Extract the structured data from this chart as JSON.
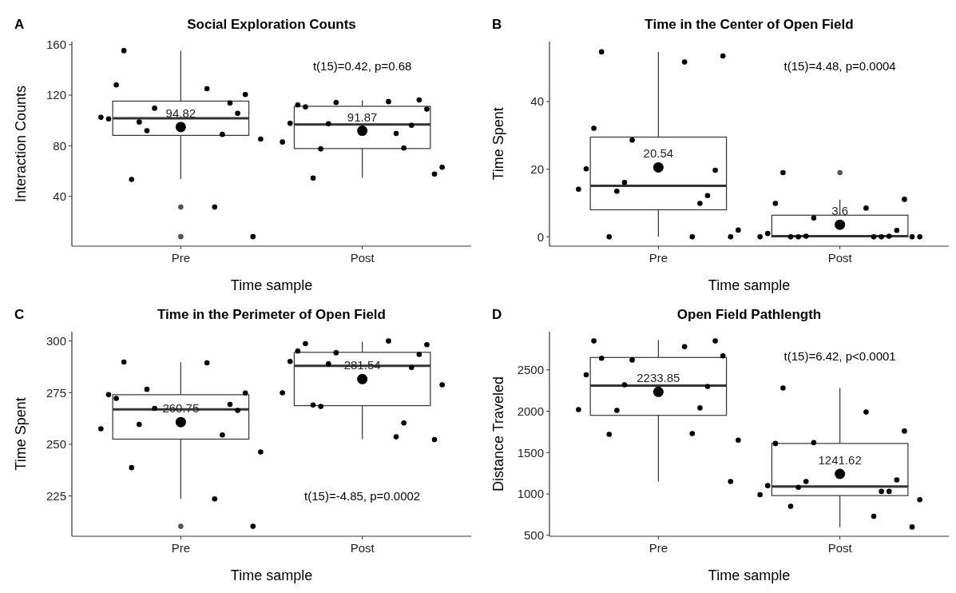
{
  "chart_data": [
    {
      "type": "box",
      "title": "Social Exploration Counts",
      "xlabel": "Time sample",
      "ylabel": "Interaction Counts",
      "categories": [
        "Pre",
        "Post"
      ],
      "ylim": [
        0.6,
        162.4
      ],
      "yticks": [
        40,
        80,
        120,
        160
      ],
      "boxes": [
        {
          "low": 53.7,
          "q1": 88.2,
          "median": 101.8,
          "q3": 115.3,
          "high": 155.2,
          "mean": 94.82,
          "outliers": [
            31.5,
            8.1
          ]
        },
        {
          "low": 54.7,
          "q1": 77.8,
          "median": 96.8,
          "q3": 111.2,
          "high": 115.9,
          "mean": 91.87
        }
      ],
      "series": [
        {
          "type": "scatter",
          "color": "#000000",
          "x": [
            "Pre",
            "Pre",
            "Pre",
            "Pre",
            "Pre",
            "Pre",
            "Pre",
            "Pre",
            "Pre",
            "Pre",
            "Pre",
            "Pre",
            "Pre",
            "Pre",
            "Pre",
            "Pre",
            "Post",
            "Post",
            "Post",
            "Post",
            "Post",
            "Post",
            "Post",
            "Post",
            "Post",
            "Post",
            "Post",
            "Post",
            "Post",
            "Post",
            "Post",
            "Post"
          ],
          "values": [
            155.2,
            125.1,
            120.5,
            128.1,
            109.7,
            105.7,
            101.2,
            91.9,
            113.8,
            102.5,
            98.8,
            89.0,
            85.3,
            53.4,
            31.5,
            8.1,
            110.7,
            114.9,
            109.0,
            112.3,
            114.2,
            116.2,
            97.7,
            97.5,
            96.2,
            83.0,
            77.5,
            78.2,
            63.0,
            54.5,
            89.7,
            57.6
          ]
        }
      ],
      "annotations": [
        "A",
        "t(15)=0.42, p=0.68",
        "94.82",
        "91.87"
      ]
    },
    {
      "type": "box",
      "title": "Time in the Center of Open Field",
      "xlabel": "Time sample",
      "ylabel": "Time Spent",
      "categories": [
        "Pre",
        "Post"
      ],
      "ylim": [
        -2.75,
        57.75
      ],
      "yticks": [
        0,
        20,
        40
      ],
      "boxes": [
        {
          "low": 0,
          "q1": 8.0,
          "median": 15.1,
          "q3": 29.5,
          "high": 54.7,
          "mean": 20.54
        },
        {
          "low": 0,
          "q1": 0,
          "median": 0.2,
          "q3": 6.4,
          "high": 11.0,
          "mean": 3.6,
          "outliers": [
            19.0
          ]
        }
      ],
      "series": [
        {
          "type": "scatter",
          "color": "#000000",
          "x": [
            "Pre",
            "Pre",
            "Pre",
            "Pre",
            "Pre",
            "Pre",
            "Pre",
            "Pre",
            "Pre",
            "Pre",
            "Pre",
            "Pre",
            "Pre",
            "Pre",
            "Pre",
            "Pre",
            "Post",
            "Post",
            "Post",
            "Post",
            "Post",
            "Post",
            "Post",
            "Post",
            "Post",
            "Post",
            "Post",
            "Post",
            "Post",
            "Post",
            "Post",
            "Post"
          ],
          "values": [
            54.7,
            51.7,
            53.5,
            32.1,
            28.6,
            19.7,
            20.1,
            16.1,
            12.2,
            14.1,
            13.5,
            9.9,
            2.0,
            0,
            0,
            0,
            19.0,
            8.5,
            11.1,
            9.9,
            5.6,
            1.9,
            1.0,
            0.2,
            0.2,
            0,
            0,
            0,
            0,
            0,
            0,
            0
          ]
        }
      ],
      "annotations": [
        "B",
        "t(15)=4.48, p=0.0004",
        "20.54",
        "3.6"
      ]
    },
    {
      "type": "box",
      "title": "Time in the Perimeter of Open Field",
      "xlabel": "Time sample",
      "ylabel": "Time Spent",
      "categories": [
        "Pre",
        "Post"
      ],
      "ylim": [
        205.5,
        304.5
      ],
      "yticks": [
        225,
        250,
        275,
        300
      ],
      "boxes": [
        {
          "low": 223.6,
          "q1": 252.5,
          "median": 266.9,
          "q3": 274.0,
          "high": 289.7,
          "mean": 260.75,
          "outliers": [
            210.3
          ]
        },
        {
          "low": 252.5,
          "q1": 268.7,
          "median": 288.0,
          "q3": 294.5,
          "high": 299.7,
          "mean": 281.54
        }
      ],
      "series": [
        {
          "type": "scatter",
          "color": "#000000",
          "x": [
            "Pre",
            "Pre",
            "Pre",
            "Pre",
            "Pre",
            "Pre",
            "Pre",
            "Pre",
            "Pre",
            "Pre",
            "Pre",
            "Pre",
            "Pre",
            "Pre",
            "Pre",
            "Pre",
            "Post",
            "Post",
            "Post",
            "Post",
            "Post",
            "Post",
            "Post",
            "Post",
            "Post",
            "Post",
            "Post",
            "Post",
            "Post",
            "Post",
            "Post",
            "Post"
          ],
          "values": [
            289.8,
            289.4,
            274.8,
            272.2,
            267.4,
            266.4,
            274.0,
            276.6,
            269.3,
            257.5,
            259.6,
            254.5,
            246.3,
            238.7,
            223.6,
            210.3,
            298.7,
            300,
            298.2,
            295.1,
            294.3,
            293.5,
            290.1,
            288.9,
            287.2,
            274.9,
            268.3,
            260.3,
            278.8,
            269.0,
            253.6,
            252.3
          ]
        }
      ],
      "annotations": [
        "C",
        "t(15)=-4.85, p=0.0002",
        "260.75",
        "281.54"
      ]
    },
    {
      "type": "box",
      "title": "Open Field Pathlength",
      "xlabel": "Time sample",
      "ylabel": "Distance Traveled",
      "categories": [
        "Pre",
        "Post"
      ],
      "ylim": [
        488,
        2962
      ],
      "yticks": [
        500,
        1000,
        1500,
        2000,
        2500
      ],
      "boxes": [
        {
          "low": 1150,
          "q1": 1950,
          "median": 2310,
          "q3": 2650,
          "high": 2860,
          "mean": 2233.85
        },
        {
          "low": 600,
          "q1": 980,
          "median": 1090,
          "q3": 1610,
          "high": 2280,
          "mean": 1241.62
        }
      ],
      "series": [
        {
          "type": "scatter",
          "color": "#000000",
          "x": [
            "Pre",
            "Pre",
            "Pre",
            "Pre",
            "Pre",
            "Pre",
            "Pre",
            "Pre",
            "Pre",
            "Pre",
            "Pre",
            "Pre",
            "Pre",
            "Pre",
            "Pre",
            "Pre",
            "Post",
            "Post",
            "Post",
            "Post",
            "Post",
            "Post",
            "Post",
            "Post",
            "Post",
            "Post",
            "Post",
            "Post",
            "Post",
            "Post",
            "Post",
            "Post"
          ],
          "values": [
            2640,
            2780,
            2670,
            2850,
            2620,
            2850,
            2440,
            2320,
            2300,
            2020,
            2010,
            2040,
            1650,
            1720,
            1730,
            1150,
            2280,
            1990,
            1760,
            1610,
            1620,
            1170,
            1100,
            1150,
            1030,
            990,
            1080,
            1030,
            930,
            850,
            730,
            600
          ]
        }
      ],
      "annotations": [
        "D",
        "t(15)=6.42, p<0.0001",
        "2233.85",
        "1241.62"
      ]
    }
  ]
}
